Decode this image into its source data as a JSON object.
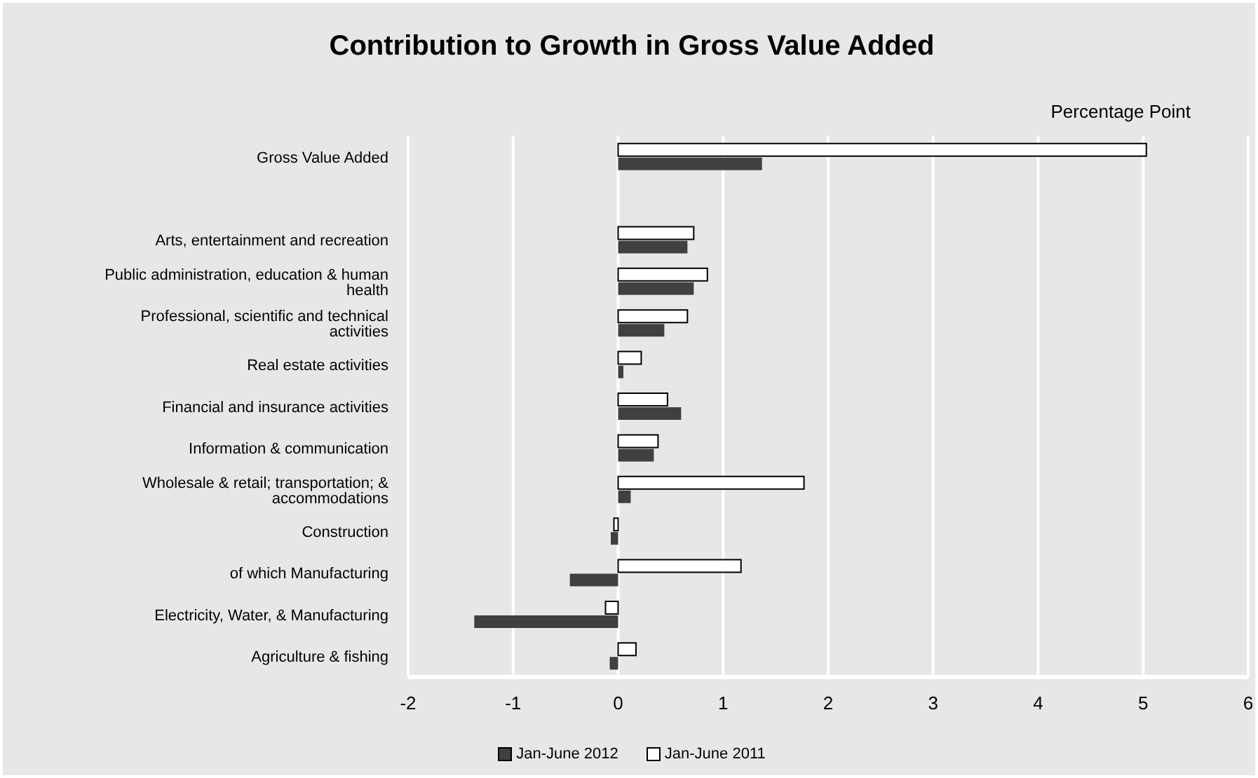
{
  "chart_data": {
    "type": "bar",
    "orientation": "horizontal",
    "title": "Contribution to Growth in Gross Value Added",
    "xlabel": "Percentage Point",
    "categories": [
      "Gross Value Added",
      null,
      "Arts, entertainment and recreation",
      "Public administration, education &  human health",
      "Professional, scientific and technical activities",
      "Real estate activities",
      "Financial and insurance activities",
      "Information & communication",
      "Wholesale & retail; transportation; & accommodations",
      "Construction",
      "of which Manufacturing",
      "Electricity, Water, & Manufacturing",
      "Agriculture & fishing"
    ],
    "series": [
      {
        "name": "Jan-June 2012",
        "color": "#404040",
        "values": [
          1.37,
          null,
          0.66,
          0.72,
          0.44,
          0.05,
          0.6,
          0.34,
          0.12,
          -0.07,
          -0.46,
          -1.37,
          -0.08
        ]
      },
      {
        "name": "Jan-June 2011",
        "color": "#ffffff",
        "values": [
          5.03,
          null,
          0.72,
          0.85,
          0.66,
          0.22,
          0.47,
          0.38,
          1.77,
          -0.04,
          1.17,
          -0.12,
          0.17
        ]
      }
    ],
    "xlim": [
      -2,
      6
    ],
    "xticks": [
      -2,
      -1,
      0,
      1,
      2,
      3,
      4,
      5,
      6
    ],
    "grid": "x",
    "legend": "bottom"
  }
}
